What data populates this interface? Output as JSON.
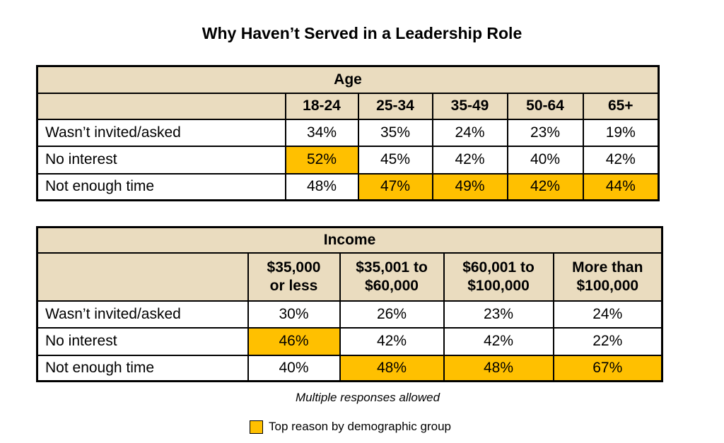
{
  "chart_data": [
    {
      "type": "table",
      "title": "Why Haven’t Served in a Leadership Role",
      "group": "Age",
      "columns": [
        "18-24",
        "25-34",
        "35-49",
        "50-64",
        "65+"
      ],
      "rows": [
        {
          "label": "Wasn’t invited/asked",
          "values": [
            "34%",
            "35%",
            "24%",
            "23%",
            "19%"
          ],
          "highlight": [
            false,
            false,
            false,
            false,
            false
          ]
        },
        {
          "label": "No interest",
          "values": [
            "52%",
            "45%",
            "42%",
            "40%",
            "42%"
          ],
          "highlight": [
            true,
            false,
            false,
            false,
            false
          ]
        },
        {
          "label": "Not enough time",
          "values": [
            "48%",
            "47%",
            "49%",
            "42%",
            "44%"
          ],
          "highlight": [
            false,
            true,
            true,
            true,
            true
          ]
        }
      ]
    },
    {
      "type": "table",
      "group": "Income",
      "columns": [
        "$35,000\nor less",
        "$35,001 to\n$60,000",
        "$60,001 to\n$100,000",
        "More than\n$100,000"
      ],
      "rows": [
        {
          "label": "Wasn’t invited/asked",
          "values": [
            "30%",
            "26%",
            "23%",
            "24%"
          ],
          "highlight": [
            false,
            false,
            false,
            false
          ]
        },
        {
          "label": "No interest",
          "values": [
            "46%",
            "42%",
            "42%",
            "22%"
          ],
          "highlight": [
            true,
            false,
            false,
            false
          ]
        },
        {
          "label": "Not enough time",
          "values": [
            "40%",
            "48%",
            "48%",
            "67%"
          ],
          "highlight": [
            false,
            true,
            true,
            true
          ]
        }
      ]
    }
  ],
  "note": "Multiple responses allowed",
  "legend": {
    "label": "Top reason by demographic group",
    "color": "#ffc000"
  },
  "colors": {
    "header": "#eadcbf",
    "highlight": "#ffc000"
  }
}
